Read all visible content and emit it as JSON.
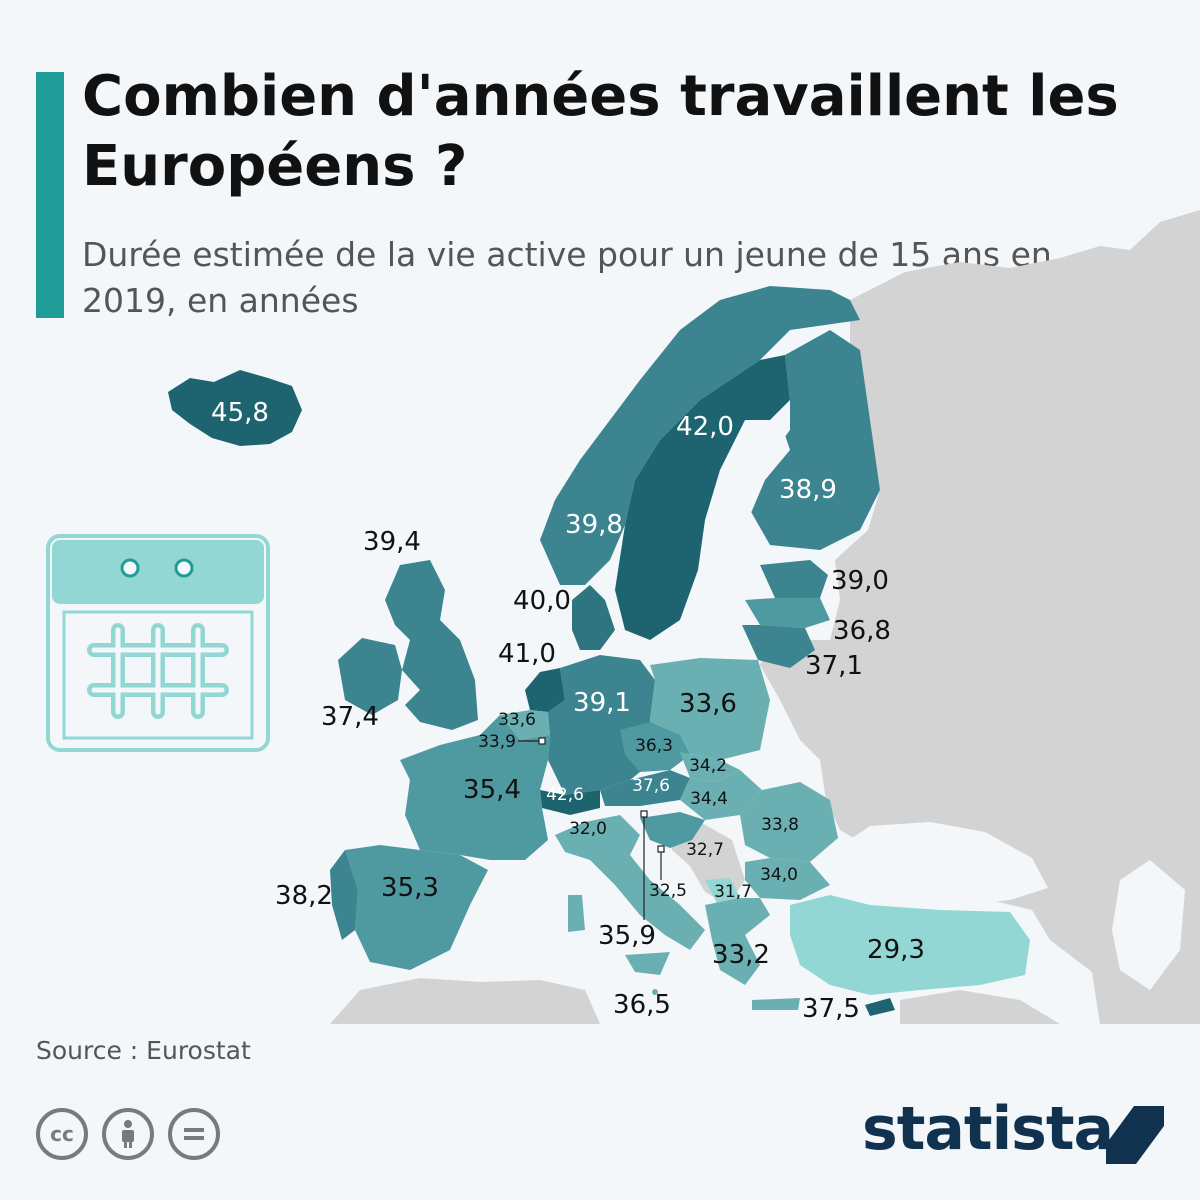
{
  "header": {
    "title": "Combien d'années travaillent les Européens ?",
    "subtitle": "Durée estimée de la vie active pour un jeune de 15 ans en 2019, en années"
  },
  "map": {
    "colors": {
      "background": "#f3f7fa",
      "non_eu_land": "#d3d3d3",
      "scale": [
        "#93d7d5",
        "#6ab0b2",
        "#4f9aa0",
        "#3b8490",
        "#2e7580",
        "#1d6470"
      ]
    },
    "labels": {
      "iceland": "45,8",
      "norway": "39,8",
      "sweden": "42,0",
      "finland": "38,9",
      "estonia": "39,0",
      "latvia": "36,8",
      "lithuania": "37,1",
      "denmark": "40,0",
      "netherlands": "41,0",
      "uk": "39,4",
      "ireland": "37,4",
      "belgium": "33,6",
      "luxembourg": "33,9",
      "germany": "39,1",
      "poland": "33,6",
      "czechia": "36,3",
      "slovakia": "34,2",
      "austria": "37,6",
      "hungary": "34,4",
      "switzerland": "42,6",
      "france": "35,4",
      "slovenia_italy": "32,0",
      "romania": "33,8",
      "serbia": "32,7",
      "bulgaria": "34,0",
      "montenegro": "32,5",
      "north_macedonia": "31,7",
      "croatia": "35,9",
      "greece": "33,2",
      "turkey": "29,3",
      "cyprus": "37,5",
      "malta": "36,5",
      "spain": "35,3",
      "portugal": "38,2"
    },
    "icon": "calendar-icon"
  },
  "footer": {
    "source": "Source : Eurostat",
    "brand": "statista",
    "license_icons": [
      "cc-icon",
      "attribution-icon",
      "no-derivatives-icon"
    ]
  }
}
